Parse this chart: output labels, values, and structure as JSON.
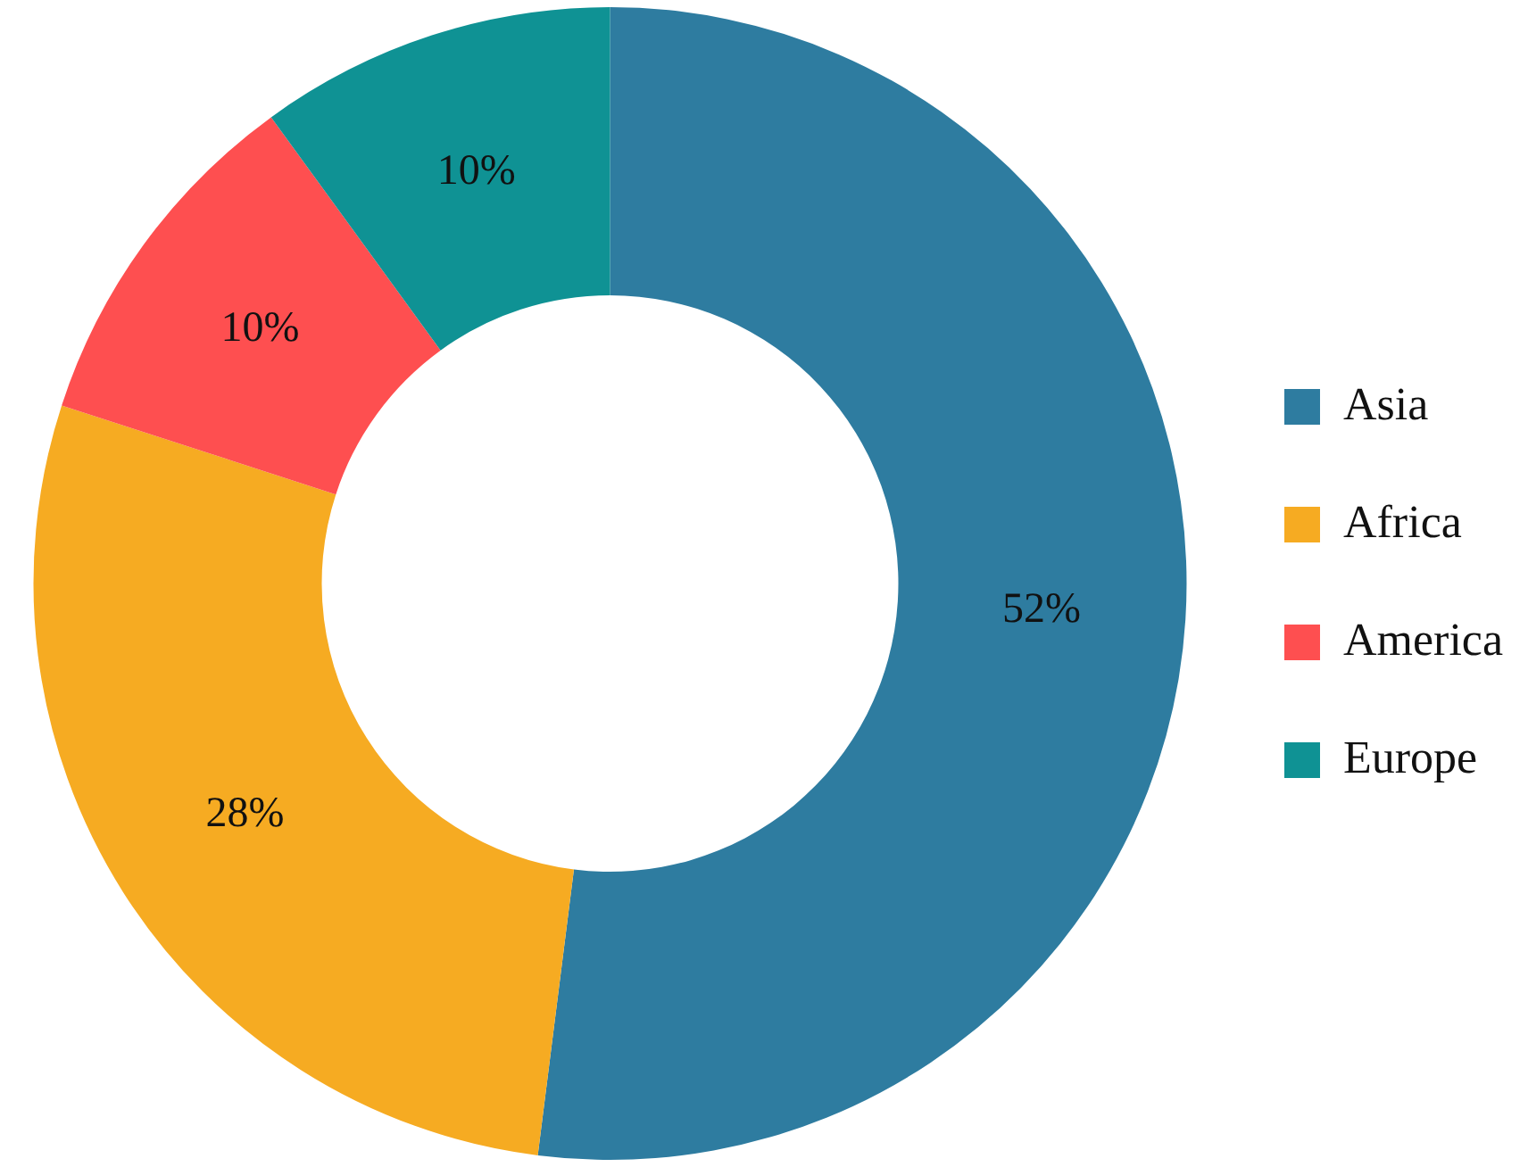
{
  "chart_data": {
    "type": "donut",
    "categories": [
      "Asia",
      "Africa",
      "America",
      "Europe"
    ],
    "values": [
      52,
      28,
      10,
      10
    ],
    "colors": [
      "#2e7ca0",
      "#f6ab22",
      "#fe4f50",
      "#0f9294"
    ],
    "value_labels": [
      "52%",
      "28%",
      "10%",
      "10%"
    ],
    "legend": "right"
  }
}
